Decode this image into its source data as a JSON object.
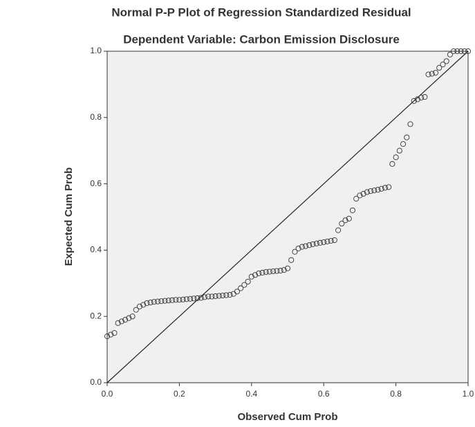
{
  "chart_data": {
    "type": "scatter",
    "title": "Normal P-P Plot of Regression Standardized Residual",
    "subtitle": "Dependent Variable: Carbon Emission Disclosure",
    "x_label": "Observed Cum Prob",
    "y_label": "Expected Cum Prob",
    "x": [
      0.0,
      0.01,
      0.02,
      0.03,
      0.04,
      0.05,
      0.06,
      0.07,
      0.08,
      0.09,
      0.1,
      0.11,
      0.12,
      0.13,
      0.14,
      0.15,
      0.16,
      0.17,
      0.18,
      0.19,
      0.2,
      0.21,
      0.22,
      0.23,
      0.24,
      0.25,
      0.26,
      0.27,
      0.28,
      0.29,
      0.3,
      0.31,
      0.32,
      0.33,
      0.34,
      0.35,
      0.36,
      0.37,
      0.38,
      0.39,
      0.4,
      0.41,
      0.42,
      0.43,
      0.44,
      0.45,
      0.46,
      0.47,
      0.48,
      0.49,
      0.5,
      0.51,
      0.52,
      0.53,
      0.54,
      0.55,
      0.56,
      0.57,
      0.58,
      0.59,
      0.6,
      0.61,
      0.62,
      0.63,
      0.64,
      0.65,
      0.66,
      0.67,
      0.68,
      0.69,
      0.7,
      0.71,
      0.72,
      0.73,
      0.74,
      0.75,
      0.76,
      0.77,
      0.78,
      0.79,
      0.8,
      0.81,
      0.82,
      0.83,
      0.84,
      0.85,
      0.86,
      0.87,
      0.88,
      0.89,
      0.9,
      0.91,
      0.92,
      0.93,
      0.94,
      0.95,
      0.96,
      0.97,
      0.98,
      0.99,
      1.0
    ],
    "values": [
      0.14,
      0.145,
      0.15,
      0.18,
      0.185,
      0.19,
      0.195,
      0.2,
      0.22,
      0.23,
      0.235,
      0.24,
      0.242,
      0.244,
      0.245,
      0.246,
      0.247,
      0.248,
      0.249,
      0.25,
      0.25,
      0.251,
      0.252,
      0.253,
      0.254,
      0.255,
      0.256,
      0.258,
      0.26,
      0.26,
      0.261,
      0.262,
      0.263,
      0.264,
      0.265,
      0.268,
      0.275,
      0.285,
      0.295,
      0.305,
      0.32,
      0.325,
      0.33,
      0.332,
      0.334,
      0.335,
      0.336,
      0.337,
      0.338,
      0.34,
      0.345,
      0.37,
      0.395,
      0.405,
      0.41,
      0.412,
      0.415,
      0.418,
      0.42,
      0.422,
      0.424,
      0.426,
      0.428,
      0.43,
      0.46,
      0.48,
      0.49,
      0.495,
      0.52,
      0.555,
      0.565,
      0.57,
      0.575,
      0.578,
      0.58,
      0.582,
      0.585,
      0.588,
      0.59,
      0.66,
      0.68,
      0.7,
      0.72,
      0.74,
      0.78,
      0.85,
      0.855,
      0.86,
      0.862,
      0.93,
      0.932,
      0.935,
      0.95,
      0.96,
      0.97,
      0.99,
      1.0,
      1.0,
      1.0,
      1.0,
      1.0
    ],
    "color": "#333333",
    "xlim": [
      0,
      1
    ],
    "ylim": [
      0,
      1
    ],
    "xticks": [
      {
        "value": 0,
        "label": "0.0"
      },
      0.2,
      0.4,
      0.6,
      0.8,
      {
        "value": 1,
        "label": "1.0"
      }
    ],
    "yticks": [
      {
        "value": 0,
        "label": "0.0"
      },
      0.2,
      0.4,
      0.6,
      0.8,
      {
        "value": 1,
        "label": "1.0"
      }
    ]
  }
}
